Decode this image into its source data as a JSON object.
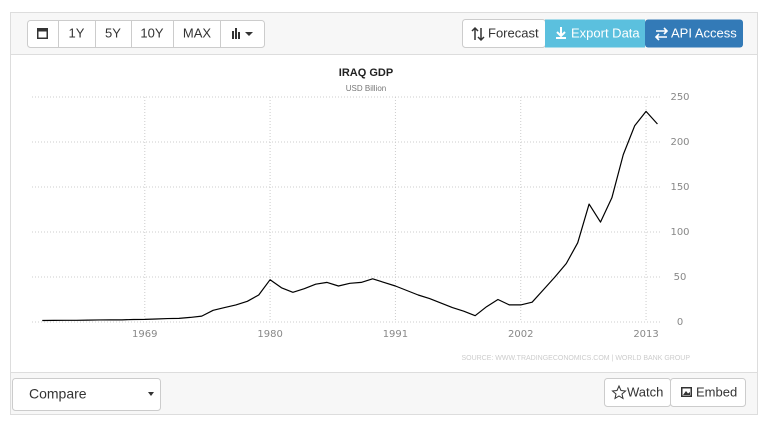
{
  "toolbar": {
    "range_buttons": [
      "1Y",
      "5Y",
      "10Y",
      "MAX"
    ],
    "forecast": "Forecast",
    "export": "Export Data",
    "api": "API Access"
  },
  "chart_data": {
    "type": "line",
    "title": "IRAQ GDP",
    "subtitle": "USD Billion",
    "x": [
      1960,
      1961,
      1962,
      1963,
      1964,
      1965,
      1966,
      1967,
      1968,
      1969,
      1970,
      1971,
      1972,
      1973,
      1974,
      1975,
      1976,
      1977,
      1978,
      1979,
      1980,
      1981,
      1982,
      1983,
      1984,
      1985,
      1986,
      1987,
      1988,
      1989,
      1990,
      1991,
      1992,
      1993,
      1994,
      1995,
      1996,
      1997,
      1998,
      1999,
      2000,
      2001,
      2002,
      2003,
      2004,
      2005,
      2006,
      2007,
      2008,
      2009,
      2010,
      2011,
      2012,
      2013,
      2014
    ],
    "values": [
      1.7,
      1.8,
      1.9,
      1.9,
      2.1,
      2.3,
      2.4,
      2.4,
      2.8,
      2.9,
      3.3,
      3.8,
      4,
      5.1,
      6.5,
      13,
      16,
      19,
      23,
      30,
      47,
      38,
      33,
      37,
      42,
      44,
      40,
      43,
      44,
      48,
      44,
      40,
      35,
      30,
      26,
      21,
      16,
      12,
      7,
      17,
      25,
      19,
      19,
      22,
      36,
      50,
      65,
      88,
      131,
      111,
      138,
      186,
      218,
      234,
      220
    ],
    "color": "#000000",
    "xlim": [
      1959.1,
      2014.4
    ],
    "xticks": [
      1969,
      1980,
      1991,
      2002,
      2013
    ],
    "ylim": [
      0,
      250
    ],
    "yticks": [
      0,
      50,
      100,
      150,
      200,
      250
    ],
    "grid": true,
    "source": "SOURCE: WWW.TRADINGECONOMICS.COM | WORLD BANK GROUP"
  },
  "footer": {
    "compare": "Compare",
    "watch": "Watch",
    "embed": "Embed"
  }
}
